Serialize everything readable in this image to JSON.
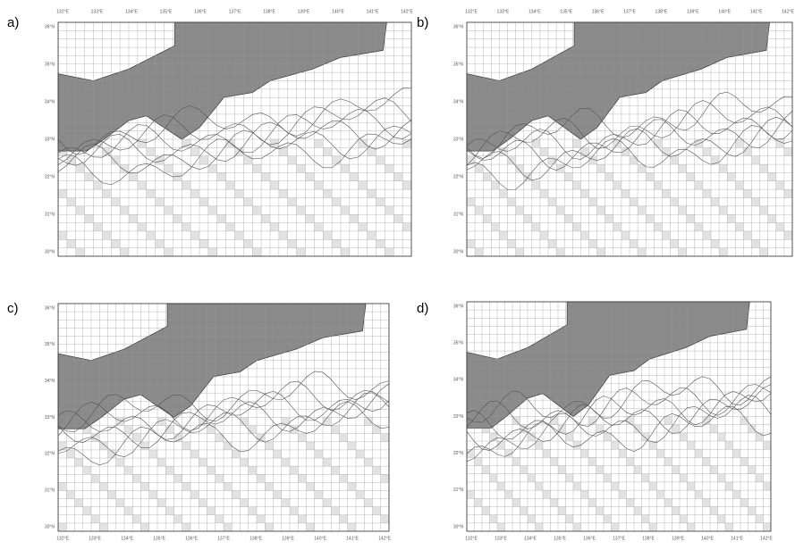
{
  "panels": [
    {
      "label": "a)",
      "lat_labels": [
        "36°N",
        "35°N",
        "34°N",
        "33°N",
        "32°N",
        "31°N",
        "30°N"
      ],
      "lon_labels": [
        "132°E",
        "133°E",
        "134°E",
        "135°E",
        "136°E",
        "137°E",
        "138°E",
        "139°E",
        "140°E",
        "141°E",
        "142°E"
      ]
    },
    {
      "label": "b)",
      "lat_labels": [
        "36°N",
        "35°N",
        "34°N",
        "33°N",
        "32°N",
        "31°N",
        "30°N"
      ],
      "lon_labels": [
        "132°E",
        "133°E",
        "134°E",
        "135°E",
        "136°E",
        "137°E",
        "138°E",
        "139°E",
        "140°E",
        "141°E",
        "142°E"
      ]
    },
    {
      "label": "c)",
      "lat_labels": [
        "36°N",
        "35°N",
        "34°N",
        "33°N",
        "32°N",
        "31°N",
        "30°N"
      ],
      "lon_labels": [
        "132°E",
        "133°E",
        "134°E",
        "135°E",
        "136°E",
        "137°E",
        "138°E",
        "139°E",
        "140°E",
        "141°E",
        "142°E"
      ]
    },
    {
      "label": "d)",
      "lat_labels": [
        "36°N",
        "35°N",
        "34°N",
        "33°N",
        "32°N",
        "31°N",
        "30°N"
      ],
      "lon_labels": [
        "132°E",
        "133°E",
        "134°E",
        "135°E",
        "136°E",
        "137°E",
        "138°E",
        "139°E",
        "140°E",
        "141°E",
        "142°E"
      ]
    }
  ]
}
